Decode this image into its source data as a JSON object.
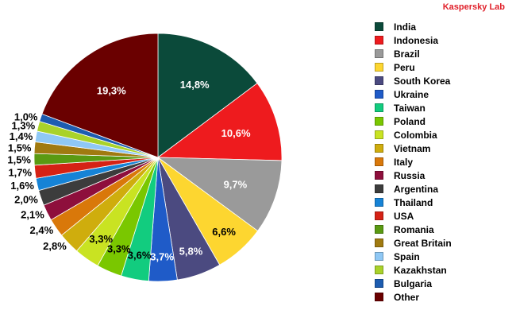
{
  "brand": "Kaspersky Lab",
  "chart_data": {
    "type": "pie",
    "title": "",
    "legend_position": "right",
    "slices": [
      {
        "label": "India",
        "value": 14.8,
        "display": "14,8%",
        "color": "#0b4a3a",
        "label_color": "#ffffff"
      },
      {
        "label": "Indonesia",
        "value": 10.6,
        "display": "10,6%",
        "color": "#ee1b1e",
        "label_color": "#ffffff"
      },
      {
        "label": "Brazil",
        "value": 9.7,
        "display": "9,7%",
        "color": "#9a9a9a",
        "label_color": "#ffffff"
      },
      {
        "label": "Peru",
        "value": 6.6,
        "display": "6,6%",
        "color": "#fdd630",
        "label_color": "#000000"
      },
      {
        "label": "South Korea",
        "value": 5.8,
        "display": "5,8%",
        "color": "#4b4a80",
        "label_color": "#ffffff"
      },
      {
        "label": "Ukraine",
        "value": 3.7,
        "display": "3,7%",
        "color": "#1f5bc8",
        "label_color": "#ffffff"
      },
      {
        "label": "Taiwan",
        "value": 3.6,
        "display": "3,6%",
        "color": "#12cc7f",
        "label_color": "#000000"
      },
      {
        "label": "Poland",
        "value": 3.3,
        "display": "3,3%",
        "color": "#7ac700",
        "label_color": "#000000"
      },
      {
        "label": "Colombia",
        "value": 3.3,
        "display": "3,3%",
        "color": "#c9e322",
        "label_color": "#000000"
      },
      {
        "label": "Vietnam",
        "value": 2.8,
        "display": "2,8%",
        "color": "#cfad0d",
        "label_color": "#000000"
      },
      {
        "label": "Italy",
        "value": 2.4,
        "display": "2,4%",
        "color": "#d9780a",
        "label_color": "#000000"
      },
      {
        "label": "Russia",
        "value": 2.1,
        "display": "2,1%",
        "color": "#8e0f3c",
        "label_color": "#000000"
      },
      {
        "label": "Argentina",
        "value": 2.0,
        "display": "2,0%",
        "color": "#3c3c3c",
        "label_color": "#000000"
      },
      {
        "label": "Thailand",
        "value": 1.6,
        "display": "1,6%",
        "color": "#1683d6",
        "label_color": "#000000"
      },
      {
        "label": "USA",
        "value": 1.7,
        "display": "1,7%",
        "color": "#d52215",
        "label_color": "#000000"
      },
      {
        "label": "Romania",
        "value": 1.5,
        "display": "1,5%",
        "color": "#5a9a12",
        "label_color": "#000000"
      },
      {
        "label": "Great Britain",
        "value": 1.5,
        "display": "1,5%",
        "color": "#a07a10",
        "label_color": "#000000"
      },
      {
        "label": "Spain",
        "value": 1.4,
        "display": "1,4%",
        "color": "#8fc8f5",
        "label_color": "#000000"
      },
      {
        "label": "Kazakhstan",
        "value": 1.3,
        "display": "1,3%",
        "color": "#a9d22a",
        "label_color": "#000000"
      },
      {
        "label": "Bulgaria",
        "value": 1.0,
        "display": "1,0%",
        "color": "#1d5cb0",
        "label_color": "#000000"
      },
      {
        "label": "Other",
        "value": 19.3,
        "display": "19,3%",
        "color": "#6a0000",
        "label_color": "#ffffff"
      }
    ]
  }
}
